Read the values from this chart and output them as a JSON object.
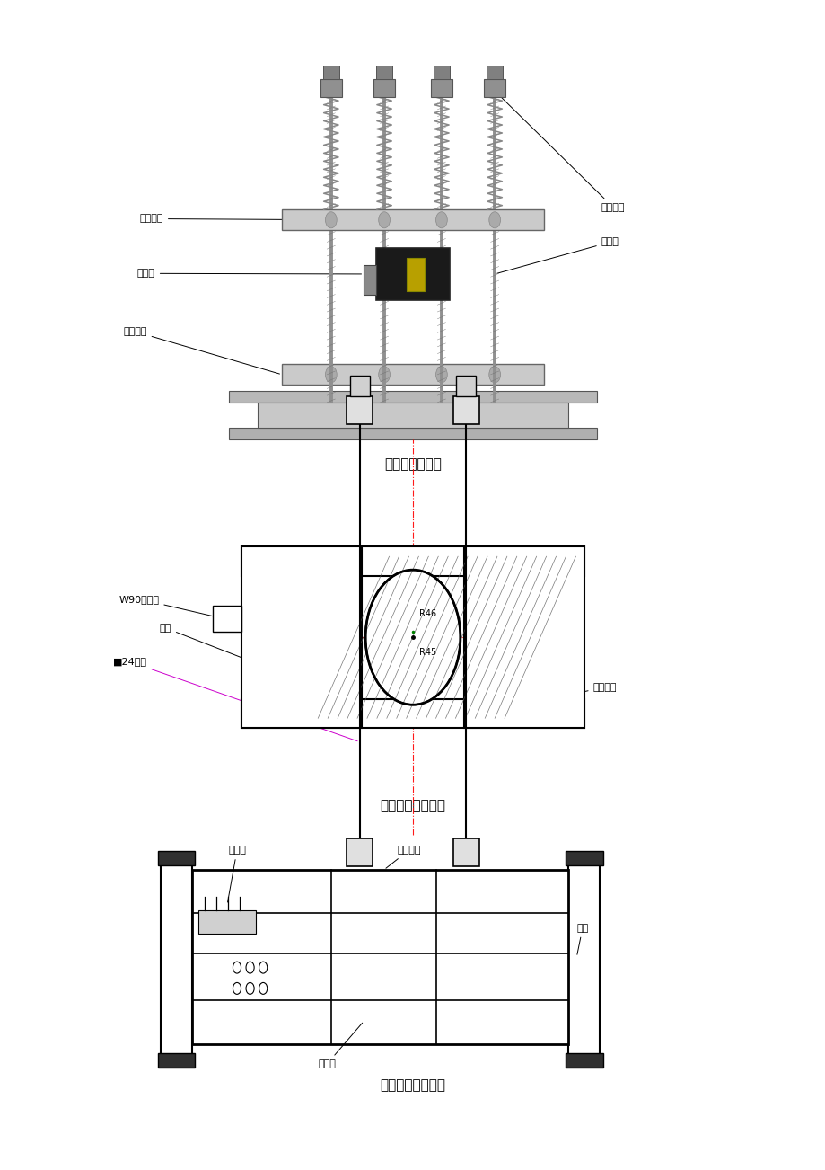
{
  "background_color": "#ffffff",
  "page_width": 9.2,
  "page_height": 13.02,
  "title1": "绳头板安装方式",
  "title2": "轿顶轮轴安装方式",
  "title3": "轿顶横梁安装方式",
  "font_size_labels": 8,
  "font_size_titles": 11,
  "text_color": "#000000",
  "diagram1_yrange": [
    0.57,
    1.0
  ],
  "diagram2_yrange": [
    0.27,
    0.57
  ],
  "diagram3_yrange": [
    0.06,
    0.27
  ]
}
